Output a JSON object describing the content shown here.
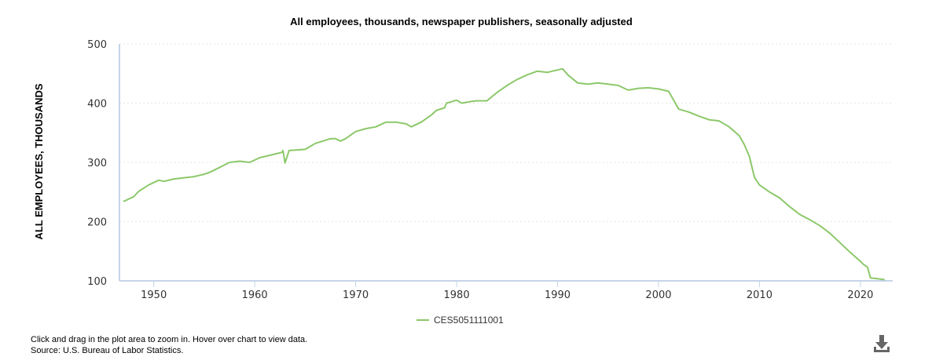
{
  "colors": {
    "series": "#8cc86a",
    "axis": "#c5d4e8",
    "grid": "#e6e6e6",
    "download": "#666666"
  },
  "footer": {
    "instructions": "Click and drag in the plot area to zoom in. Hover over chart to view data.",
    "source": "Source: U.S. Bureau of Labor Statistics."
  },
  "download_icon": "download-icon",
  "chart_data": {
    "type": "line",
    "title": "All employees, thousands, newspaper publishers, seasonally adjusted",
    "xlabel": "",
    "ylabel": "ALL EMPLOYEES, THOUSANDS",
    "xlim": [
      1946.6,
      2023.2
    ],
    "ylim": [
      100,
      500
    ],
    "xticks": [
      1950,
      1960,
      1970,
      1980,
      1990,
      2000,
      2010,
      2020
    ],
    "yticks": [
      100,
      200,
      300,
      400,
      500
    ],
    "grid": true,
    "legend_position": "bottom-center",
    "series": [
      {
        "name": "CES5051111001",
        "color": "#8cc86a",
        "x": [
          1947.0,
          1948.0,
          1948.5,
          1949.5,
          1950.5,
          1951.0,
          1952.0,
          1953.0,
          1954.0,
          1955.0,
          1955.5,
          1956.0,
          1957.5,
          1958.5,
          1959.5,
          1960.5,
          1962.0,
          1962.7,
          1962.8,
          1963.0,
          1963.4,
          1965.0,
          1966.0,
          1967.5,
          1968.0,
          1968.5,
          1969.0,
          1970.0,
          1971.0,
          1972.0,
          1973.0,
          1974.0,
          1975.0,
          1975.5,
          1976.5,
          1977.5,
          1978.0,
          1978.8,
          1979.0,
          1980.0,
          1980.5,
          1981.5,
          1982.0,
          1983.0,
          1984.0,
          1985.0,
          1986.0,
          1987.0,
          1988.0,
          1989.0,
          1990.0,
          1990.5,
          1991.0,
          1992.0,
          1993.0,
          1994.0,
          1995.0,
          1996.0,
          1997.0,
          1998.0,
          1999.0,
          2000.0,
          2001.0,
          2002.0,
          2003.0,
          2004.0,
          2005.0,
          2006.0,
          2007.0,
          2008.0,
          2008.5,
          2009.0,
          2009.5,
          2010.0,
          2011.0,
          2012.0,
          2013.0,
          2014.0,
          2015.0,
          2016.0,
          2017.0,
          2018.0,
          2019.0,
          2020.0,
          2020.3,
          2020.7,
          2021.0,
          2022.0,
          2022.4
        ],
        "values": [
          234,
          242,
          251,
          262,
          270,
          268,
          272,
          274,
          276,
          280,
          283,
          287,
          300,
          302,
          300,
          308,
          314,
          317,
          320,
          299,
          320,
          322,
          332,
          340,
          340,
          336,
          340,
          352,
          357,
          360,
          368,
          368,
          365,
          360,
          368,
          380,
          388,
          392,
          400,
          405,
          400,
          403,
          404,
          404,
          418,
          430,
          440,
          448,
          454,
          452,
          456,
          458,
          448,
          434,
          432,
          434,
          432,
          430,
          422,
          425,
          426,
          424,
          420,
          390,
          385,
          378,
          372,
          370,
          360,
          345,
          330,
          310,
          275,
          262,
          250,
          240,
          225,
          212,
          203,
          193,
          180,
          164,
          148,
          133,
          128,
          123,
          105,
          103,
          102
        ]
      }
    ]
  }
}
